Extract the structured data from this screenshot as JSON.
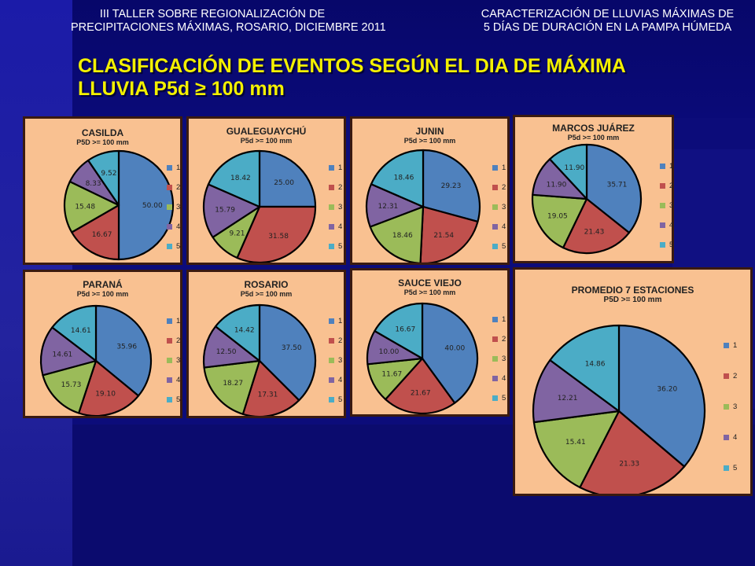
{
  "header": {
    "left_line1": "III TALLER SOBRE REGIONALIZACIÓN DE",
    "left_line2": "PRECIPITACIONES MÁXIMAS, ROSARIO, DICIEMBRE 2011",
    "right_line1": "CARACTERIZACIÓN DE LLUVIAS MÁXIMAS DE",
    "right_line2": "5 DÍAS DE DURACIÓN EN LA PAMPA HÚMEDA"
  },
  "title": {
    "line1": "CLASIFICACIÓN DE EVENTOS SEGÚN EL DIA DE MÁXIMA",
    "line2": "LLUVIA  P5d ≥ 100 mm"
  },
  "colors": {
    "slice": [
      "#4f81bd",
      "#c0504d",
      "#9bbb59",
      "#8064a2",
      "#4bacc6"
    ],
    "panel_bg": "#f9c191"
  },
  "chart_data": [
    {
      "type": "pie",
      "title": "CASILDA",
      "subtitle": "P5D >= 100 mm",
      "categories": [
        "1",
        "2",
        "3",
        "4",
        "5"
      ],
      "values": [
        50.0,
        16.67,
        15.48,
        8.33,
        9.52
      ],
      "labels": [
        "50.00",
        "16.67",
        "15.48",
        "8.33",
        "9.52"
      ],
      "legend": "right"
    },
    {
      "type": "pie",
      "title": "GUALEGUAYCHÚ",
      "subtitle": "P5d >= 100 mm",
      "categories": [
        "1",
        "2",
        "3",
        "4",
        "5"
      ],
      "values": [
        25.0,
        31.58,
        9.21,
        15.79,
        18.42
      ],
      "labels": [
        "25.00",
        "31.58",
        "9.21",
        "15.79",
        "18.42"
      ],
      "legend": "right"
    },
    {
      "type": "pie",
      "title": "JUNIN",
      "subtitle": "P5d >= 100 mm",
      "categories": [
        "1",
        "2",
        "3",
        "4",
        "5"
      ],
      "values": [
        29.23,
        21.54,
        18.46,
        12.31,
        18.46
      ],
      "labels": [
        "29.23",
        "21.54",
        "18.46",
        "12.31",
        "18.46"
      ],
      "legend": "right"
    },
    {
      "type": "pie",
      "title": "MARCOS JUÁREZ",
      "subtitle": "P5d >= 100 mm",
      "categories": [
        "1",
        "2",
        "3",
        "4",
        "5"
      ],
      "values": [
        35.71,
        21.43,
        19.05,
        11.9,
        11.9
      ],
      "labels": [
        "35.71",
        "21.43",
        "19.05",
        "11.90",
        "11.90"
      ],
      "legend": "right"
    },
    {
      "type": "pie",
      "title": "PARANÁ",
      "subtitle": "P5d >= 100 mm",
      "categories": [
        "1",
        "2",
        "3",
        "4",
        "5"
      ],
      "values": [
        35.96,
        19.1,
        15.73,
        14.61,
        14.61
      ],
      "labels": [
        "35.96",
        "19.10",
        "15.73",
        "14.61",
        "14.61"
      ],
      "legend": "right"
    },
    {
      "type": "pie",
      "title": "ROSARIO",
      "subtitle": "P5d >= 100 mm",
      "categories": [
        "1",
        "2",
        "3",
        "4",
        "5"
      ],
      "values": [
        37.5,
        17.31,
        18.27,
        12.5,
        14.42
      ],
      "labels": [
        "37.50",
        "17.31",
        "18.27",
        "12.50",
        "14.42"
      ],
      "legend": "right"
    },
    {
      "type": "pie",
      "title": "SAUCE VIEJO",
      "subtitle": "P5d >= 100 mm",
      "categories": [
        "1",
        "2",
        "3",
        "4",
        "5"
      ],
      "values": [
        40.0,
        21.67,
        11.67,
        10.0,
        16.67
      ],
      "labels": [
        "40.00",
        "21.67",
        "11.67",
        "10.00",
        "16.67"
      ],
      "legend": "right"
    },
    {
      "type": "pie",
      "title": "PROMEDIO 7 ESTACIONES",
      "subtitle": "P5D >= 100 mm",
      "categories": [
        "1",
        "2",
        "3",
        "4",
        "5"
      ],
      "values": [
        36.2,
        21.33,
        15.41,
        12.21,
        14.86
      ],
      "labels": [
        "36.20",
        "21.33",
        "15.41",
        "12.21",
        "14.86"
      ],
      "legend": "right"
    }
  ]
}
